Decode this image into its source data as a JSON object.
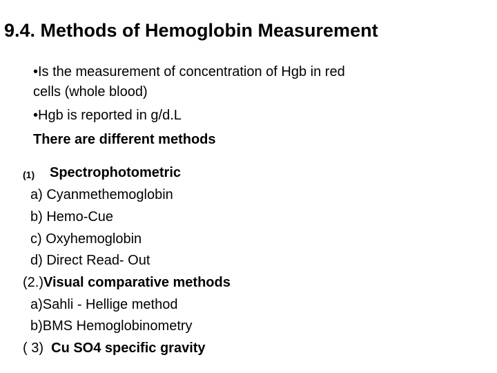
{
  "title": "9.4. Methods of Hemoglobin Measurement",
  "intro": {
    "line1": "•Is the measurement of concentration of Hgb in red",
    "line2": "cells (whole blood)",
    "line3": "•Hgb is reported in g/d.L",
    "line4": "There are different methods"
  },
  "methods": {
    "m1_num": "(1)",
    "m1_label": "Spectrophotometric",
    "m1_items": [
      "a) Cyanmethemoglobin",
      "b) Hemo-Cue",
      "c) Oxyhemoglobin",
      "d) Direct Read- Out"
    ],
    "m2_num": "(2.)",
    "m2_label": "Visual comparative methods",
    "m2_items": [
      "a)Sahli - Hellige method",
      "b)BMS Hemoglobinometry"
    ],
    "m3_num": "( 3)",
    "m3_label": "Cu SO4 specific gravity"
  }
}
